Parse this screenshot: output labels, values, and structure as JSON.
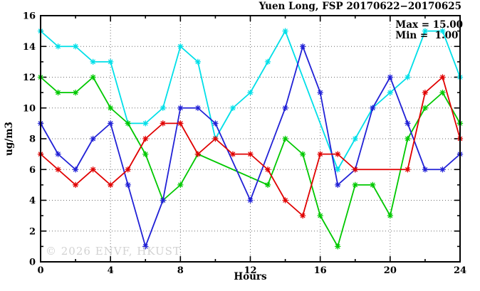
{
  "watermark": "© 2026 ENVF, HKUST",
  "chart_data": {
    "type": "line",
    "title": "Yuen Long, FSP 20170622−20170625",
    "xlabel": "Hours",
    "ylabel": "ug/m3",
    "xlim": [
      0,
      24
    ],
    "ylim": [
      0,
      16
    ],
    "x_major_ticks": [
      0,
      4,
      8,
      12,
      16,
      20,
      24
    ],
    "x_minor_tick_step": 2,
    "y_major_ticks": [
      0,
      2,
      4,
      6,
      8,
      10,
      12,
      14,
      16
    ],
    "y_minor_tick_step": 1,
    "grid": "dotted lines at major ticks, full frame with mirrored inward ticks",
    "legend_position": "top-right inside plot",
    "annotations": {
      "max": "Max = 15.00",
      "min": "Min =  1.00"
    },
    "x": [
      0,
      1,
      2,
      3,
      4,
      5,
      6,
      7,
      8,
      9,
      10,
      11,
      12,
      13,
      14,
      15,
      16,
      17,
      18,
      19,
      20,
      21,
      22,
      23,
      24
    ],
    "series": [
      {
        "name": "cyan-series",
        "color": "#00dfe8",
        "values": [
          15,
          14,
          14,
          13,
          13,
          9,
          9,
          10,
          14,
          13,
          8,
          10,
          11,
          13,
          15,
          null,
          null,
          6,
          8,
          10,
          11,
          12,
          15,
          15,
          12
        ]
      },
      {
        "name": "green-series",
        "color": "#00c800",
        "values": [
          12,
          11,
          11,
          12,
          10,
          9,
          7,
          4,
          5,
          7,
          null,
          null,
          null,
          5,
          8,
          7,
          3,
          1,
          5,
          5,
          3,
          8,
          10,
          11,
          9
        ]
      },
      {
        "name": "blue-series",
        "color": "#2121d6",
        "values": [
          9,
          7,
          6,
          8,
          9,
          5,
          1,
          4,
          10,
          10,
          9,
          null,
          4,
          null,
          10,
          14,
          11,
          5,
          6,
          10,
          12,
          9,
          6,
          6,
          7
        ]
      },
      {
        "name": "red-series",
        "color": "#e00000",
        "values": [
          7,
          6,
          5,
          6,
          5,
          6,
          8,
          9,
          9,
          7,
          8,
          7,
          7,
          6,
          4,
          3,
          7,
          7,
          6,
          null,
          null,
          6,
          11,
          12,
          8
        ]
      }
    ]
  }
}
